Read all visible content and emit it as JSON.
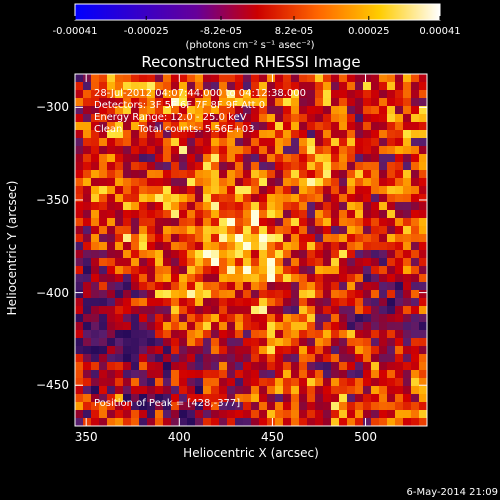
{
  "colorbar": {
    "tick_labels": [
      "-0.00041",
      "-0.00025",
      "-8.2e-05",
      "8.2e-05",
      "0.00025",
      "0.00041"
    ],
    "tick_values": [
      -0.00041,
      -0.00025,
      -8.2e-05,
      8.2e-05,
      0.00025,
      0.00041
    ],
    "range": [
      -0.00041,
      0.00041
    ],
    "units": "(photons cm⁻² s⁻¹ asec⁻²)",
    "colors": [
      "#0000ff",
      "#3300cc",
      "#660099",
      "#cc0000",
      "#ff6600",
      "#ffcc00",
      "#ffffff"
    ]
  },
  "chart_data": {
    "type": "heatmap",
    "title": "Reconstructed RHESSI Image",
    "xlabel": "Heliocentric X (arcsec)",
    "ylabel": "Heliocentric Y (arcsec)",
    "xlim": [
      344,
      533
    ],
    "ylim": [
      -472,
      -282
    ],
    "xticks": [
      350,
      400,
      450,
      500
    ],
    "yticks": [
      -300,
      -350,
      -400,
      -450
    ],
    "peak": {
      "x": 428,
      "y": -377
    },
    "grid": false
  },
  "annotations": {
    "time_range": "28-Jul-2012 04:07:44.000 to 04:12:38.000",
    "detectors": "Detectors: 3F 5F 6F 7F 8F 9F Att 0",
    "energy": "Energy Range: 12.0 - 25.0 keV",
    "method": "Clean     Total counts: 5.56E+03",
    "peak_text": "Position of Peak = [428,-377]"
  },
  "footer": "6-May-2014 21:09"
}
